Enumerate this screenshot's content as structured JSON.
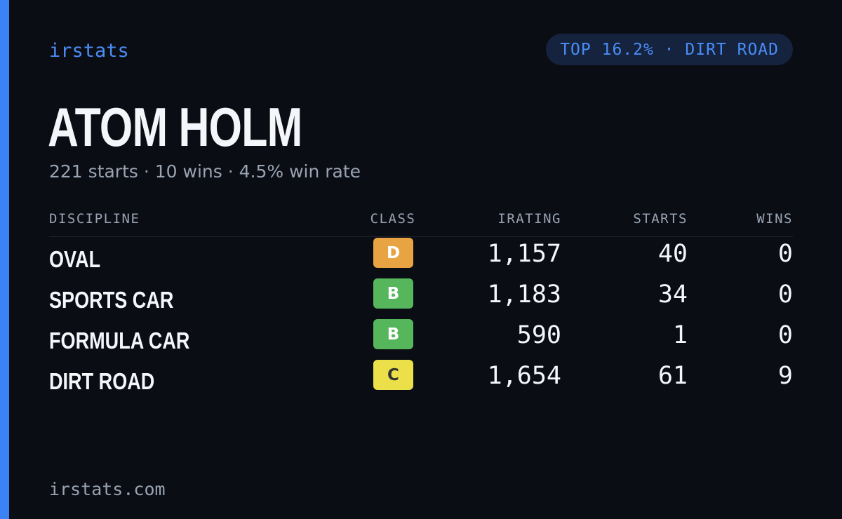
{
  "brand": "irstats",
  "rank_badge": "TOP 16.2% · DIRT ROAD",
  "driver": {
    "name": "ATOM HOLM",
    "summary": "221 starts · 10 wins · 4.5% win rate"
  },
  "table": {
    "headers": {
      "discipline": "DISCIPLINE",
      "class": "CLASS",
      "irating": "IRATING",
      "starts": "STARTS",
      "wins": "WINS"
    },
    "rows": [
      {
        "discipline": "OVAL",
        "class": "D",
        "class_color": "#e8a443",
        "class_text_color": "#ffffff",
        "irating": "1,157",
        "starts": "40",
        "wins": "0"
      },
      {
        "discipline": "SPORTS CAR",
        "class": "B",
        "class_color": "#56b65c",
        "class_text_color": "#ffffff",
        "irating": "1,183",
        "starts": "34",
        "wins": "0"
      },
      {
        "discipline": "FORMULA CAR",
        "class": "B",
        "class_color": "#56b65c",
        "class_text_color": "#ffffff",
        "irating": "590",
        "starts": "1",
        "wins": "0"
      },
      {
        "discipline": "DIRT ROAD",
        "class": "C",
        "class_color": "#ece04a",
        "class_text_color": "#333333",
        "irating": "1,654",
        "starts": "61",
        "wins": "9"
      }
    ]
  },
  "footer": "irstats.com",
  "colors": {
    "background": "#0a0d14",
    "accent": "#3b82f6",
    "muted_text": "#9aa3b2"
  }
}
